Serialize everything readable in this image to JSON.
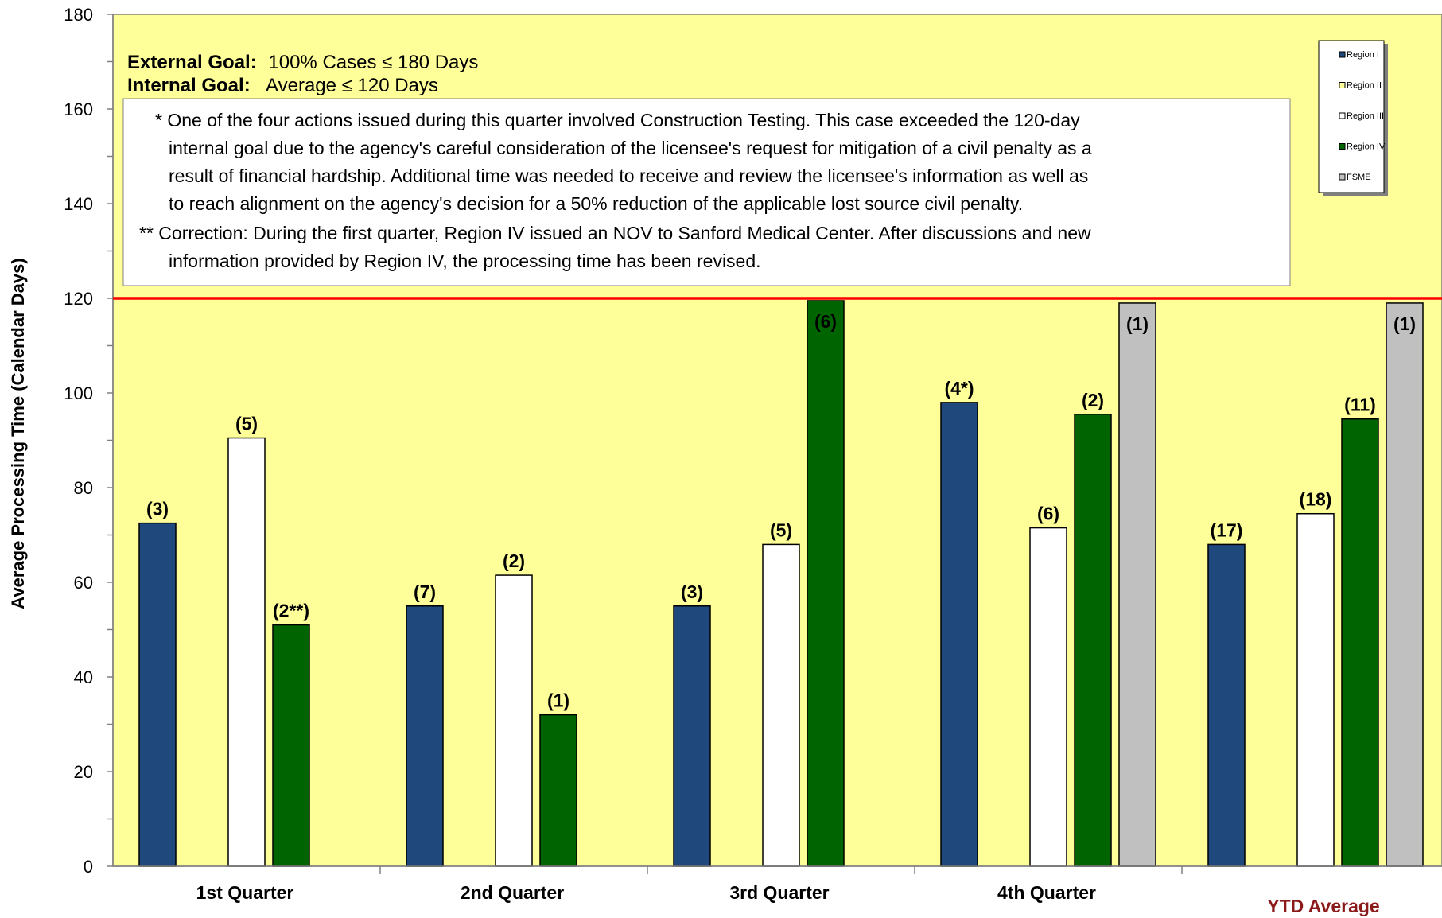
{
  "chart_data": {
    "type": "bar",
    "title": "",
    "ylabel": "Average Processing Time (Calendar Days)",
    "xlabel": "",
    "ylim": [
      0,
      180
    ],
    "yticks": [
      0,
      20,
      40,
      60,
      80,
      100,
      120,
      140,
      160,
      180
    ],
    "grid": false,
    "legend_position": "top-right",
    "reference_line": {
      "value": 120,
      "color": "#ff0000"
    },
    "categories": [
      "1st Quarter",
      "2nd Quarter",
      "3rd Quarter",
      "4th Quarter",
      "YTD Average"
    ],
    "series": [
      {
        "name": "Region I",
        "color": "#1f497d",
        "values": [
          72.5,
          55,
          55,
          98,
          68
        ],
        "labels": [
          "(3)",
          "(7)",
          "(3)",
          "(4*)",
          "(17)"
        ]
      },
      {
        "name": "Region II",
        "color": "#ffff99",
        "values": [
          null,
          null,
          null,
          null,
          null
        ],
        "labels": [
          "",
          "",
          "",
          "",
          ""
        ]
      },
      {
        "name": "Region III",
        "color": "#ffffff",
        "values": [
          90.5,
          61.5,
          68,
          71.5,
          74.5
        ],
        "labels": [
          "(5)",
          "(2)",
          "(5)",
          "(6)",
          "(18)"
        ]
      },
      {
        "name": "Region IV",
        "color": "#006400",
        "values": [
          51,
          32,
          119.5,
          95.5,
          94.5
        ],
        "labels": [
          "(2**)",
          "(1)",
          "(6)",
          "(2)",
          "(11)"
        ]
      },
      {
        "name": "FSME",
        "color": "#c0c0c0",
        "values": [
          null,
          null,
          null,
          119,
          119
        ],
        "labels": [
          "",
          "",
          "",
          "(1)",
          "(1)"
        ]
      }
    ],
    "goals": {
      "external_label": "External Goal:",
      "external_text": "100% Cases  ≤ 180 Days",
      "internal_label": "Internal Goal:",
      "internal_text": "Average ≤ 120 Days"
    },
    "notes": [
      "* One of the four actions issued during this quarter involved Construction Testing.  This case  exceeded the 120-day",
      "internal goal due to the agency's careful consideration of the licensee's request  for mitigation of a civil penalty as a",
      "result of financial hardship.  Additional time was needed to receive and review the licensee's information as well as",
      "to reach alignment on the agency's decision for a 50% reduction of the applicable lost source civil penalty.",
      "** Correction:  During the first quarter, Region IV issued an NOV to Sanford Medical Center.  After discussions and new",
      "information provided by Region IV, the processing time has been revised."
    ],
    "colors": {
      "plot_background": "#ffff99",
      "axis": "#808080",
      "ytd_label": "#8b1a1a"
    }
  }
}
